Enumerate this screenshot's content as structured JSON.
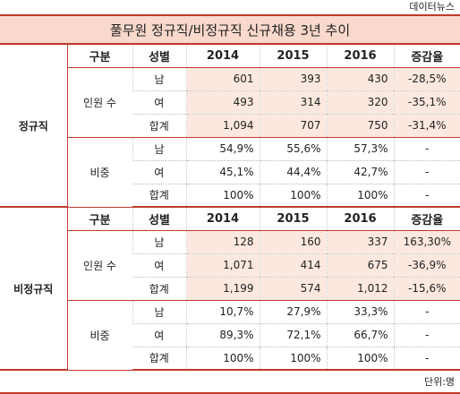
{
  "source": "데이터뉴스",
  "title": "풀무원 정규직/비정규직 신규채용 3년 추이",
  "sections": [
    {
      "label": "정규직",
      "header": [
        "구분",
        "성별",
        "2014",
        "2015",
        "2016",
        "증감율"
      ],
      "groups": [
        {
          "label": "인원 수",
          "rows": [
            [
              "남",
              "601",
              "393",
              "430",
              "-28,5%"
            ],
            [
              "여",
              "493",
              "314",
              "320",
              "-35,1%"
            ],
            [
              "합계",
              "1,094",
              "707",
              "750",
              "-31,4%"
            ]
          ]
        },
        {
          "label": "비중",
          "rows": [
            [
              "남",
              "54,9%",
              "55,6%",
              "57,3%",
              "-"
            ],
            [
              "여",
              "45,1%",
              "44,4%",
              "42,7%",
              "-"
            ],
            [
              "합계",
              "100%",
              "100%",
              "100%",
              "-"
            ]
          ]
        }
      ]
    },
    {
      "label": "비정규직",
      "header": [
        "구분",
        "성별",
        "2014",
        "2015",
        "2016",
        "증감율"
      ],
      "groups": [
        {
          "label": "인원 수",
          "rows": [
            [
              "남",
              "128",
              "160",
              "337",
              "163,30%"
            ],
            [
              "여",
              "1,071",
              "414",
              "675",
              "-36,9%"
            ],
            [
              "합계",
              "1,199",
              "574",
              "1,012",
              "-15,6%"
            ]
          ]
        },
        {
          "label": "비중",
          "rows": [
            [
              "남",
              "10,7%",
              "27,9%",
              "33,3%",
              "-"
            ],
            [
              "여",
              "89,3%",
              "72,1%",
              "66,7%",
              "-"
            ],
            [
              "합계",
              "100%",
              "100%",
              "100%",
              "-"
            ]
          ]
        }
      ]
    }
  ],
  "footer": "단위:명"
}
